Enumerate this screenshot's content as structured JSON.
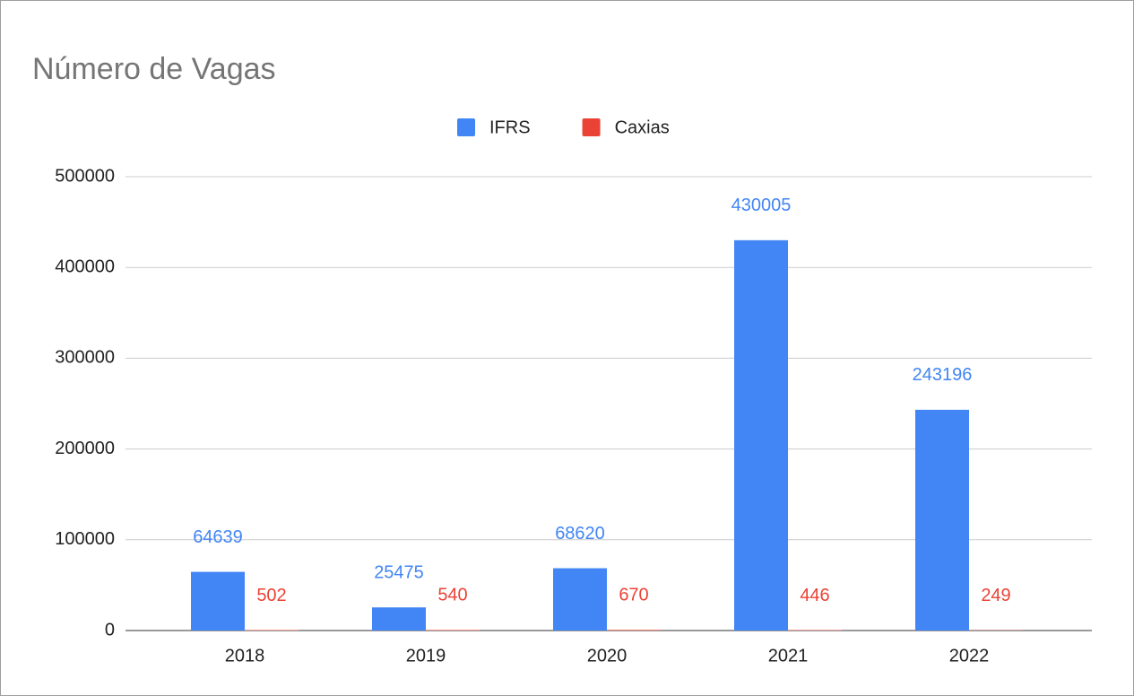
{
  "chart_data": {
    "type": "bar",
    "title": "Número de Vagas",
    "categories": [
      "2018",
      "2019",
      "2020",
      "2021",
      "2022"
    ],
    "series": [
      {
        "name": "IFRS",
        "color": "#4285f4",
        "values": [
          64639,
          25475,
          68620,
          430005,
          243196
        ]
      },
      {
        "name": "Caxias",
        "color": "#ea4335",
        "values": [
          502,
          540,
          670,
          446,
          249
        ]
      }
    ],
    "ylim": [
      0,
      500000
    ],
    "yticks": [
      0,
      100000,
      200000,
      300000,
      400000,
      500000
    ],
    "grid": true,
    "legend": "top"
  }
}
